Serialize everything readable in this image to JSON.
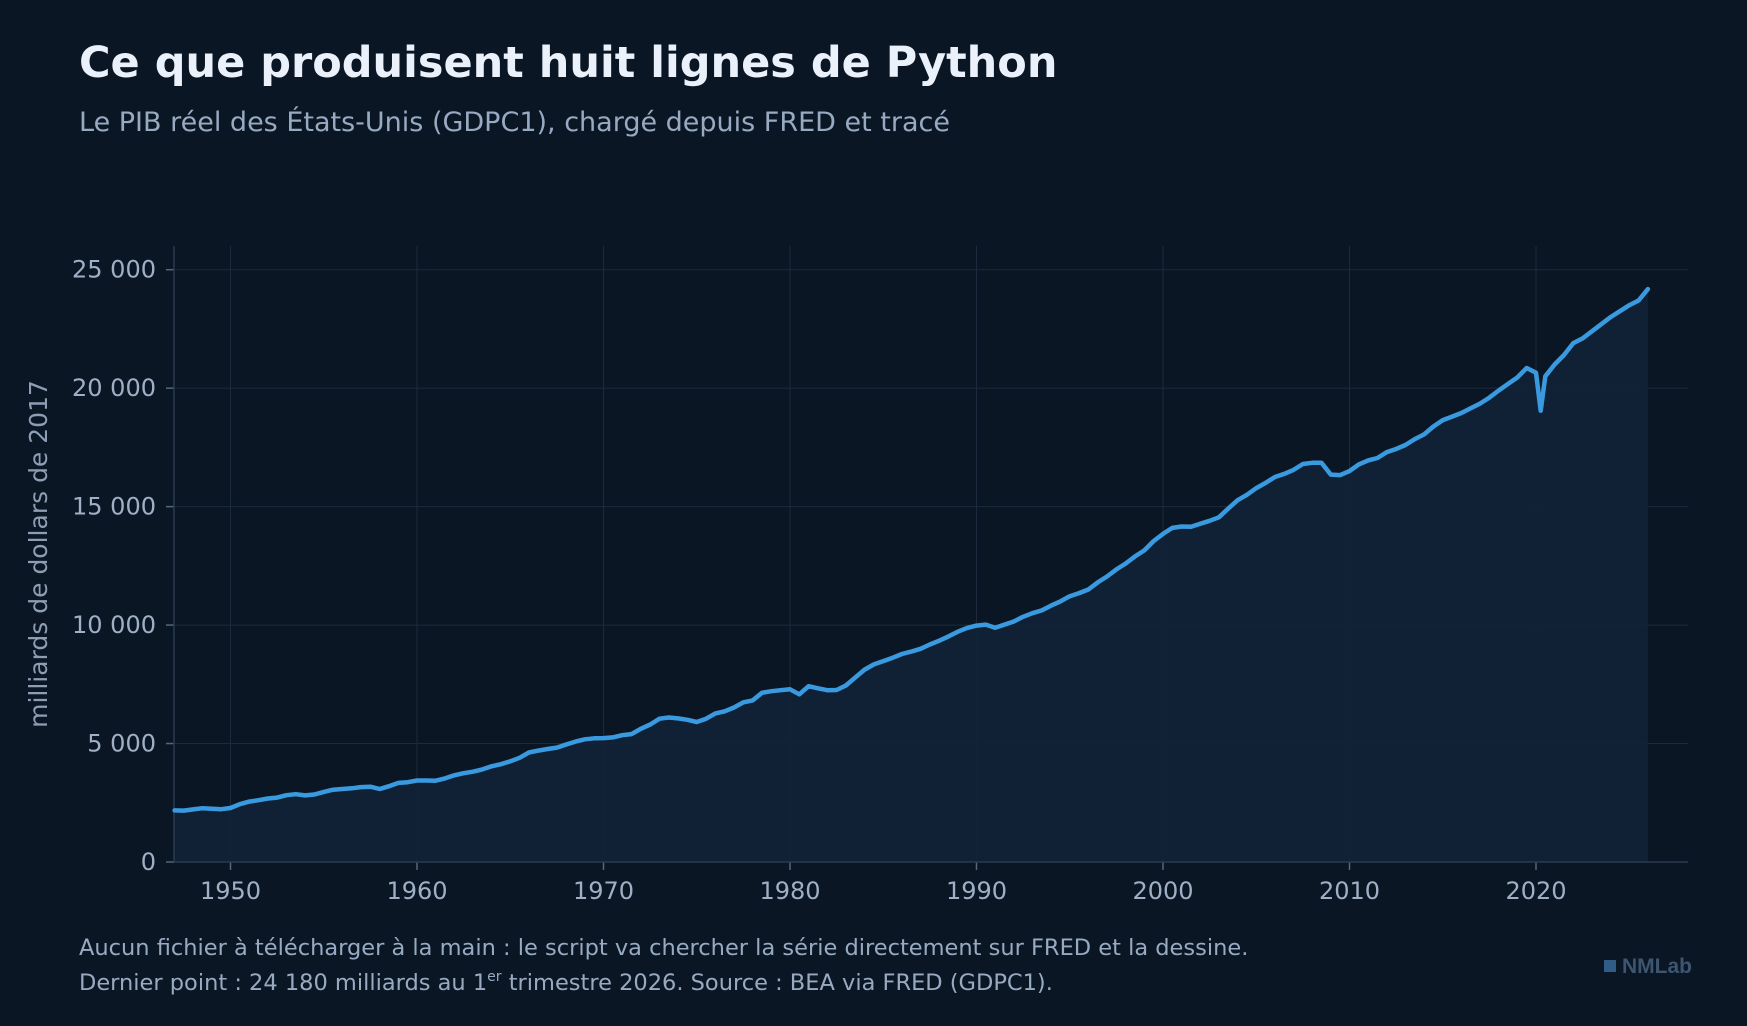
{
  "header": {
    "title": "Ce que produisent huit lignes de Python",
    "subtitle": "Le PIB réel des États-Unis (GDPC1), chargé depuis FRED et tracé"
  },
  "footer": {
    "line1": "Aucun fichier à télécharger à la main : le script va chercher la série directement sur FRED et la dessine.",
    "line2_before": "Dernier point : 24 180 milliards au 1",
    "line2_sup": "er",
    "line2_after": " trimestre 2026. Source : BEA via FRED (GDPC1).",
    "brand": "NMLab"
  },
  "colors": {
    "background": "#0b1624",
    "line": "#3a9ae0",
    "area": "#112238",
    "grid": "#1b2a3d"
  },
  "chart_data": {
    "type": "area",
    "title": "",
    "xlabel": "",
    "ylabel": "milliards de dollars de 2017",
    "xlim": [
      1947,
      2028
    ],
    "ylim": [
      0,
      26000
    ],
    "x_ticks": [
      1950,
      1960,
      1970,
      1980,
      1990,
      2000,
      2010,
      2020
    ],
    "y_ticks": [
      0,
      5000,
      10000,
      15000,
      20000,
      25000
    ],
    "y_tick_labels": [
      "0",
      "5 000",
      "10 000",
      "15 000",
      "20 000",
      "25 000"
    ],
    "grid": true,
    "series": [
      {
        "x": [
          1947.0,
          1947.5,
          1948.0,
          1948.5,
          1949.0,
          1949.5,
          1950.0,
          1950.5,
          1951.0,
          1951.5,
          1952.0,
          1952.5,
          1953.0,
          1953.5,
          1954.0,
          1954.5,
          1955.0,
          1955.5,
          1956.0,
          1956.5,
          1957.0,
          1957.5,
          1958.0,
          1958.5,
          1959.0,
          1959.5,
          1960.0,
          1960.5,
          1961.0,
          1961.5,
          1962.0,
          1962.5,
          1963.0,
          1963.5,
          1964.0,
          1964.5,
          1965.0,
          1965.5,
          1966.0,
          1966.5,
          1967.0,
          1967.5,
          1968.0,
          1968.5,
          1969.0,
          1969.5,
          1970.0,
          1970.5,
          1971.0,
          1971.5,
          1972.0,
          1972.5,
          1973.0,
          1973.5,
          1974.0,
          1974.5,
          1975.0,
          1975.5,
          1976.0,
          1976.5,
          1977.0,
          1977.5,
          1978.0,
          1978.5,
          1979.0,
          1979.5,
          1980.0,
          1980.5,
          1981.0,
          1981.5,
          1982.0,
          1982.5,
          1983.0,
          1983.5,
          1984.0,
          1984.5,
          1985.0,
          1985.5,
          1986.0,
          1986.5,
          1987.0,
          1987.5,
          1988.0,
          1988.5,
          1989.0,
          1989.5,
          1990.0,
          1990.5,
          1991.0,
          1991.5,
          1992.0,
          1992.5,
          1993.0,
          1993.5,
          1994.0,
          1994.5,
          1995.0,
          1995.5,
          1996.0,
          1996.5,
          1997.0,
          1997.5,
          1998.0,
          1998.5,
          1999.0,
          1999.5,
          2000.0,
          2000.5,
          2001.0,
          2001.5,
          2002.0,
          2002.5,
          2003.0,
          2003.5,
          2004.0,
          2004.5,
          2005.0,
          2005.5,
          2006.0,
          2006.5,
          2007.0,
          2007.5,
          2008.0,
          2008.5,
          2009.0,
          2009.5,
          2010.0,
          2010.5,
          2011.0,
          2011.5,
          2012.0,
          2012.5,
          2013.0,
          2013.5,
          2014.0,
          2014.5,
          2015.0,
          2015.5,
          2016.0,
          2016.5,
          2017.0,
          2017.5,
          2018.0,
          2018.5,
          2019.0,
          2019.5,
          2020.0,
          2020.25,
          2020.5,
          2021.0,
          2021.5,
          2022.0,
          2022.5,
          2023.0,
          2023.5,
          2024.0,
          2024.5,
          2025.0,
          2025.5,
          2026.0
        ],
        "values": [
          2180,
          2170,
          2220,
          2270,
          2250,
          2230,
          2280,
          2440,
          2550,
          2610,
          2680,
          2720,
          2820,
          2860,
          2810,
          2850,
          2960,
          3050,
          3080,
          3110,
          3160,
          3180,
          3080,
          3200,
          3340,
          3370,
          3440,
          3440,
          3430,
          3530,
          3660,
          3750,
          3810,
          3910,
          4040,
          4130,
          4250,
          4400,
          4620,
          4700,
          4770,
          4830,
          4960,
          5080,
          5180,
          5220,
          5230,
          5260,
          5350,
          5400,
          5620,
          5800,
          6050,
          6100,
          6060,
          6000,
          5910,
          6050,
          6270,
          6360,
          6520,
          6740,
          6820,
          7140,
          7210,
          7250,
          7290,
          7080,
          7420,
          7330,
          7250,
          7260,
          7450,
          7790,
          8120,
          8340,
          8480,
          8620,
          8780,
          8880,
          9000,
          9180,
          9340,
          9520,
          9720,
          9880,
          9980,
          10020,
          9890,
          10020,
          10150,
          10350,
          10500,
          10620,
          10820,
          11000,
          11220,
          11350,
          11500,
          11800,
          12050,
          12350,
          12600,
          12900,
          13150,
          13550,
          13850,
          14100,
          14160,
          14150,
          14280,
          14400,
          14550,
          14920,
          15270,
          15500,
          15780,
          16000,
          16250,
          16380,
          16550,
          16800,
          16850,
          16850,
          16350,
          16330,
          16500,
          16780,
          16950,
          17050,
          17300,
          17430,
          17600,
          17850,
          18050,
          18380,
          18650,
          18800,
          18950,
          19150,
          19350,
          19600,
          19900,
          20180,
          20450,
          20850,
          20650,
          19050,
          20500,
          21000,
          21400,
          21900,
          22100,
          22400,
          22700,
          23000,
          23250,
          23500,
          23700,
          24180
        ]
      }
    ]
  }
}
